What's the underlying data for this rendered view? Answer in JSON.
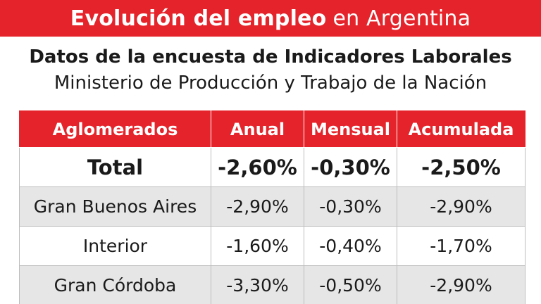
{
  "header": {
    "title_bold": "Evolución del empleo",
    "title_rest": "en Argentina"
  },
  "subtitle": "Datos de la encuesta de Indicadores Laborales",
  "source": "Ministerio de Producción y Trabajo de la Nación",
  "table": {
    "columns": [
      "Aglomerados",
      "Anual",
      "Mensual",
      "Acumulada"
    ],
    "rows": [
      [
        "Total",
        "-2,60%",
        "-0,30%",
        "-2,50%"
      ],
      [
        "Gran Buenos Aires",
        "-2,90%",
        "-0,30%",
        "-2,90%"
      ],
      [
        "Interior",
        "-1,60%",
        "-0,40%",
        "-1,70%"
      ],
      [
        "Gran Córdoba",
        "-3,30%",
        "-0,50%",
        "-2,90%"
      ]
    ]
  },
  "colors": {
    "accent_red": "#e5232a",
    "row_shade": "#e6e6e6",
    "text": "#1a1a1a"
  }
}
